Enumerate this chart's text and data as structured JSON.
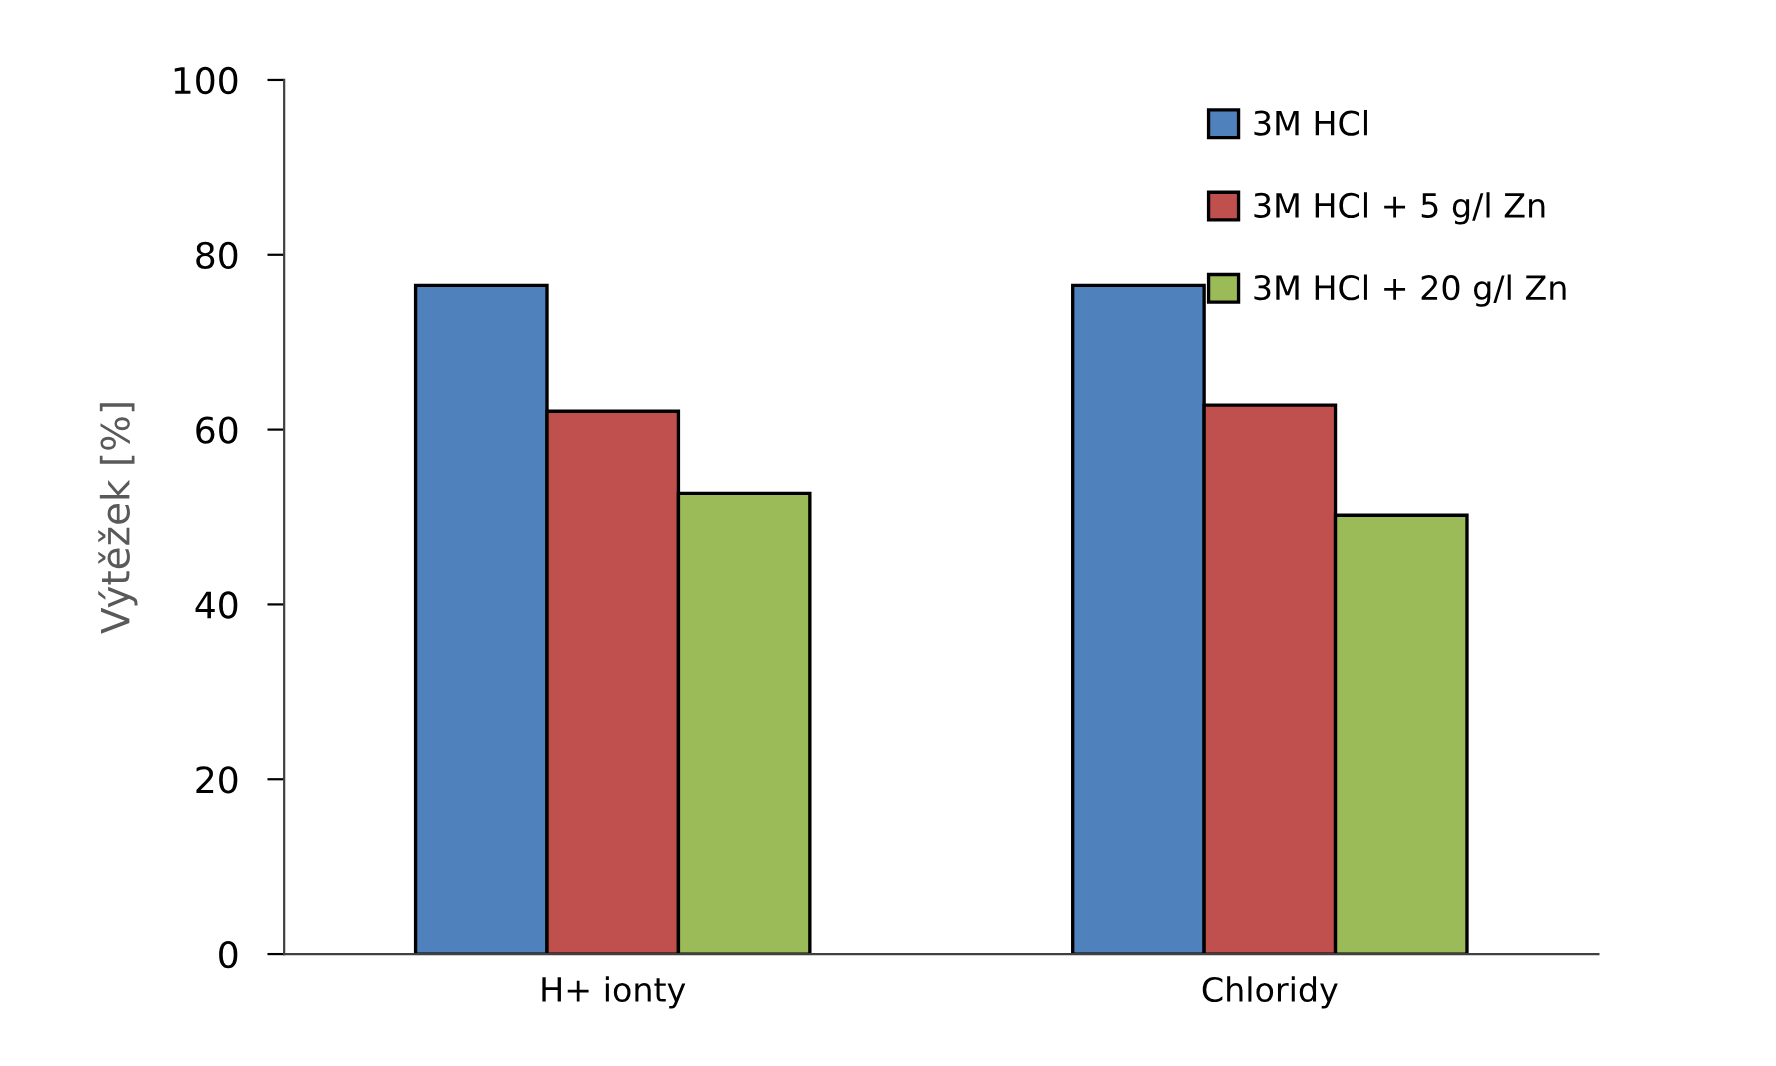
{
  "chart_data": {
    "type": "bar",
    "ylabel": "Výtěžek [%]",
    "categories": [
      "H+ ionty",
      "Chloridy"
    ],
    "series": [
      {
        "name": "3M HCl",
        "color": "#4f81bd",
        "values": [
          76.5,
          76.5
        ]
      },
      {
        "name": "3M HCl + 5 g/l Zn",
        "color": "#c0504d",
        "values": [
          62.1,
          62.8
        ]
      },
      {
        "name": "3M HCl + 20 g/l Zn",
        "color": "#9bbb59",
        "values": [
          52.7,
          50.2
        ]
      }
    ],
    "ylim": [
      0,
      100
    ],
    "yticks": [
      0,
      20,
      40,
      60,
      80,
      100
    ],
    "grid": false,
    "legend": "top right"
  }
}
